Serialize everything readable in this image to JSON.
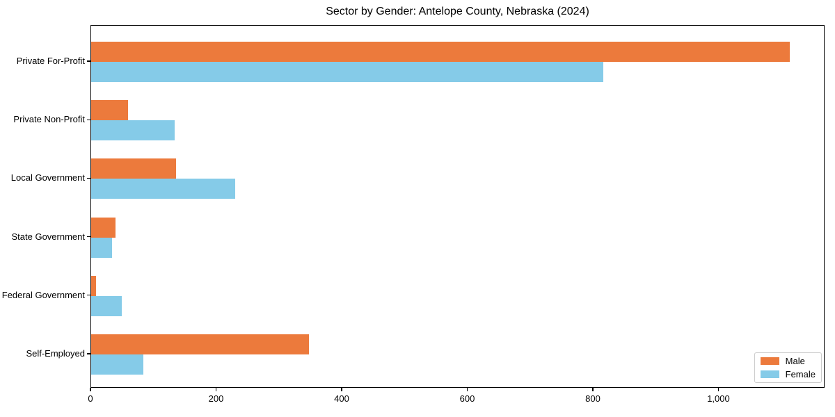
{
  "chart_data": {
    "type": "bar",
    "orientation": "horizontal",
    "title": "Sector by Gender: Antelope County, Nebraska (2024)",
    "categories": [
      "Private For-Profit",
      "Private Non-Profit",
      "Local Government",
      "State Government",
      "Federal Government",
      "Self-Employed"
    ],
    "series": [
      {
        "name": "Male",
        "color": "#ec7a3c",
        "values": [
          1113,
          59,
          135,
          39,
          8,
          347
        ]
      },
      {
        "name": "Female",
        "color": "#85cbe8",
        "values": [
          816,
          133,
          229,
          33,
          49,
          83
        ]
      }
    ],
    "xlabel": "",
    "ylabel": "",
    "xlim": [
      0,
      1169
    ],
    "xticks": [
      0,
      200,
      400,
      600,
      800,
      1000
    ],
    "xtick_labels": [
      "0",
      "200",
      "400",
      "600",
      "800",
      "1,000"
    ],
    "grid": false,
    "legend_position": "lower right"
  }
}
